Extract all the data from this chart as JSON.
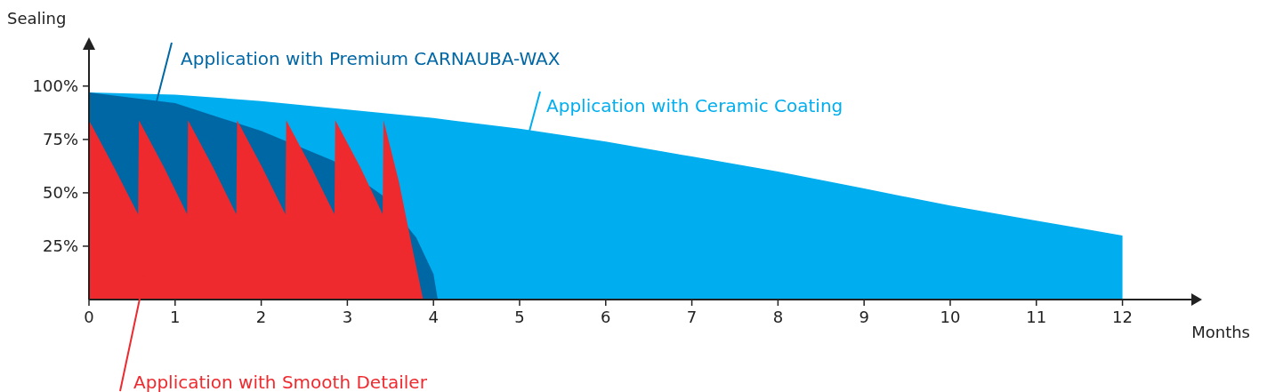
{
  "chart_data": {
    "type": "area",
    "xlabel": "Months",
    "ylabel": "Sealing",
    "xlim": [
      0,
      12.8
    ],
    "ylim": [
      0,
      122
    ],
    "xticks": [
      0,
      1,
      2,
      3,
      4,
      5,
      6,
      7,
      8,
      9,
      10,
      11,
      12
    ],
    "yticks": [
      {
        "value": 25,
        "label": "25%"
      },
      {
        "value": 50,
        "label": "50%"
      },
      {
        "value": 75,
        "label": "75%"
      },
      {
        "value": 100,
        "label": "100%"
      }
    ],
    "legend": false,
    "grid": false,
    "series": [
      {
        "name": "Application with Ceramic Coating",
        "color": "#00aeef",
        "x": [
          0,
          1,
          2,
          3,
          4,
          5,
          6,
          7,
          8,
          9,
          10,
          11,
          12,
          12
        ],
        "values": [
          97,
          96,
          93,
          89,
          85,
          80,
          74,
          67,
          60,
          52,
          44,
          37,
          30,
          0
        ]
      },
      {
        "name": "Application with Premium CARNAUBA-WAX",
        "color": "#0067a5",
        "x": [
          0,
          1,
          2,
          2.84,
          3.4,
          3.8,
          4,
          4.05
        ],
        "values": [
          97,
          92,
          79,
          65,
          49,
          29,
          12,
          0
        ]
      },
      {
        "name": "Application with Smooth Detailer",
        "color": "#ee2a2e",
        "x": [
          0,
          0.29,
          0.57,
          0.58,
          0.87,
          1.14,
          1.15,
          1.44,
          1.71,
          1.72,
          2.01,
          2.28,
          2.29,
          2.58,
          2.85,
          2.86,
          3.15,
          3.41,
          3.42,
          3.6,
          3.75,
          3.88
        ],
        "values": [
          84,
          62,
          40,
          84,
          62,
          40,
          84,
          62,
          40,
          84,
          62,
          40,
          84,
          62,
          40,
          84,
          62,
          40,
          84,
          55,
          25,
          0
        ]
      }
    ]
  }
}
